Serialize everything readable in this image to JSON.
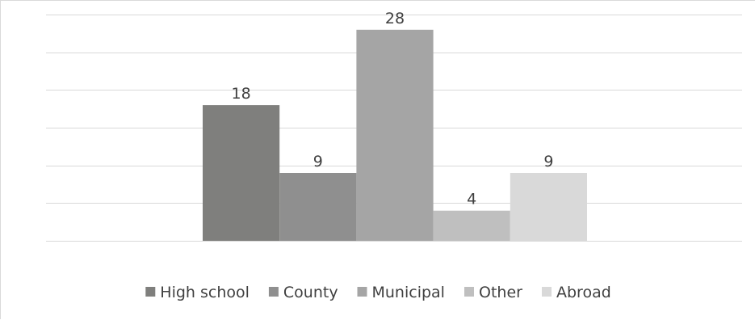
{
  "chart_data": {
    "type": "bar",
    "title": "",
    "xlabel": "",
    "ylabel": "",
    "ylim": [
      0,
      30
    ],
    "grid": true,
    "legend_position": "bottom",
    "series": [
      {
        "name": "High school",
        "values": [
          18
        ],
        "color": "#7f7f7d"
      },
      {
        "name": "County",
        "values": [
          9
        ],
        "color": "#8f8f8f"
      },
      {
        "name": "Municipal",
        "values": [
          28
        ],
        "color": "#a5a5a5"
      },
      {
        "name": "Other",
        "values": [
          4
        ],
        "color": "#bfbfbf"
      },
      {
        "name": "Abroad",
        "values": [
          9
        ],
        "color": "#d9d9d9"
      }
    ]
  }
}
